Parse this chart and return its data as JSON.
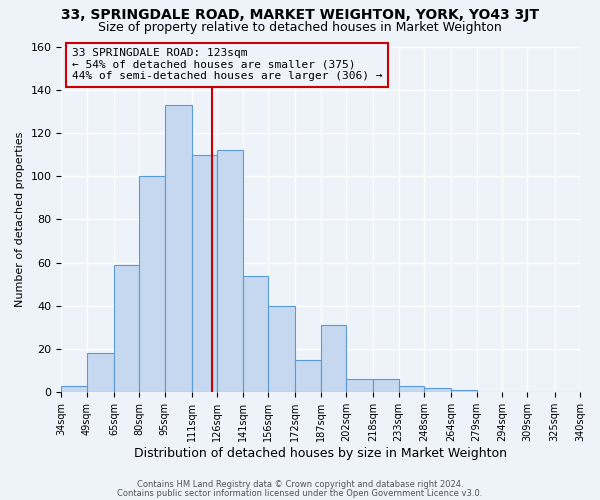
{
  "title": "33, SPRINGDALE ROAD, MARKET WEIGHTON, YORK, YO43 3JT",
  "subtitle": "Size of property relative to detached houses in Market Weighton",
  "xlabel": "Distribution of detached houses by size in Market Weighton",
  "ylabel": "Number of detached properties",
  "bar_values": [
    3,
    18,
    59,
    100,
    133,
    110,
    112,
    54,
    40,
    15,
    31,
    6,
    6,
    3,
    2,
    1,
    0,
    0,
    0,
    0
  ],
  "bin_edges": [
    34,
    49,
    65,
    80,
    95,
    111,
    126,
    141,
    156,
    172,
    187,
    202,
    218,
    233,
    248,
    264,
    279,
    294,
    309,
    325,
    340
  ],
  "bin_labels": [
    "34sqm",
    "49sqm",
    "65sqm",
    "80sqm",
    "95sqm",
    "111sqm",
    "126sqm",
    "141sqm",
    "156sqm",
    "172sqm",
    "187sqm",
    "202sqm",
    "218sqm",
    "233sqm",
    "248sqm",
    "264sqm",
    "279sqm",
    "294sqm",
    "309sqm",
    "325sqm",
    "340sqm"
  ],
  "bar_color": "#c5d8f0",
  "bar_edgecolor": "#5b9bd5",
  "property_line_x": 123,
  "property_line_color": "#cc0000",
  "annotation_title": "33 SPRINGDALE ROAD: 123sqm",
  "annotation_line1": "← 54% of detached houses are smaller (375)",
  "annotation_line2": "44% of semi-detached houses are larger (306) →",
  "annotation_box_edgecolor": "#cc0000",
  "yticks": [
    0,
    20,
    40,
    60,
    80,
    100,
    120,
    140,
    160
  ],
  "ylim": [
    0,
    160
  ],
  "footer1": "Contains HM Land Registry data © Crown copyright and database right 2024.",
  "footer2": "Contains public sector information licensed under the Open Government Licence v3.0.",
  "background_color": "#eef2f9",
  "grid_color": "#ffffff",
  "title_fontsize": 10,
  "subtitle_fontsize": 9
}
